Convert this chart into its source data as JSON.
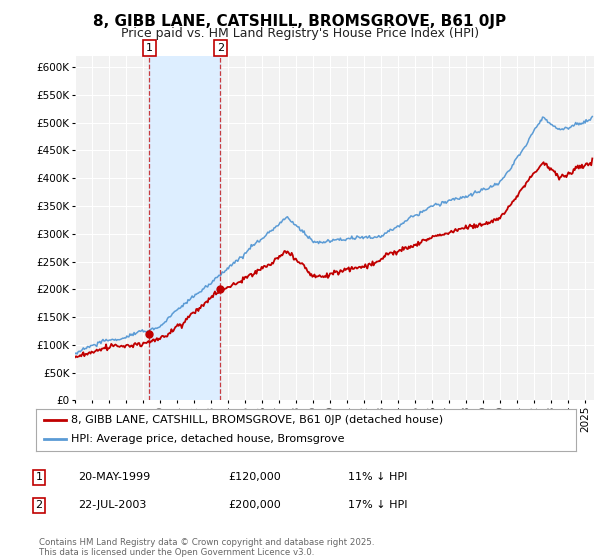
{
  "title": "8, GIBB LANE, CATSHILL, BROMSGROVE, B61 0JP",
  "subtitle": "Price paid vs. HM Land Registry's House Price Index (HPI)",
  "ylim": [
    0,
    620000
  ],
  "yticks": [
    0,
    50000,
    100000,
    150000,
    200000,
    250000,
    300000,
    350000,
    400000,
    450000,
    500000,
    550000,
    600000
  ],
  "background_color": "#ffffff",
  "plot_bg_color": "#f2f2f2",
  "grid_color": "#ffffff",
  "hpi_color": "#5b9bd5",
  "price_color": "#c00000",
  "shade_color": "#ddeeff",
  "transaction1_x": 1999.375,
  "transaction1_price": 120000,
  "transaction2_x": 2003.542,
  "transaction2_price": 200000,
  "legend_label1": "8, GIBB LANE, CATSHILL, BROMSGROVE, B61 0JP (detached house)",
  "legend_label2": "HPI: Average price, detached house, Bromsgrove",
  "annotation1_label": "20-MAY-1999",
  "annotation1_price": "£120,000",
  "annotation1_hpi": "11% ↓ HPI",
  "annotation2_label": "22-JUL-2003",
  "annotation2_price": "£200,000",
  "annotation2_hpi": "17% ↓ HPI",
  "footer": "Contains HM Land Registry data © Crown copyright and database right 2025.\nThis data is licensed under the Open Government Licence v3.0.",
  "title_fontsize": 11,
  "subtitle_fontsize": 9,
  "tick_fontsize": 7.5,
  "legend_fontsize": 8,
  "annotation_fontsize": 8
}
